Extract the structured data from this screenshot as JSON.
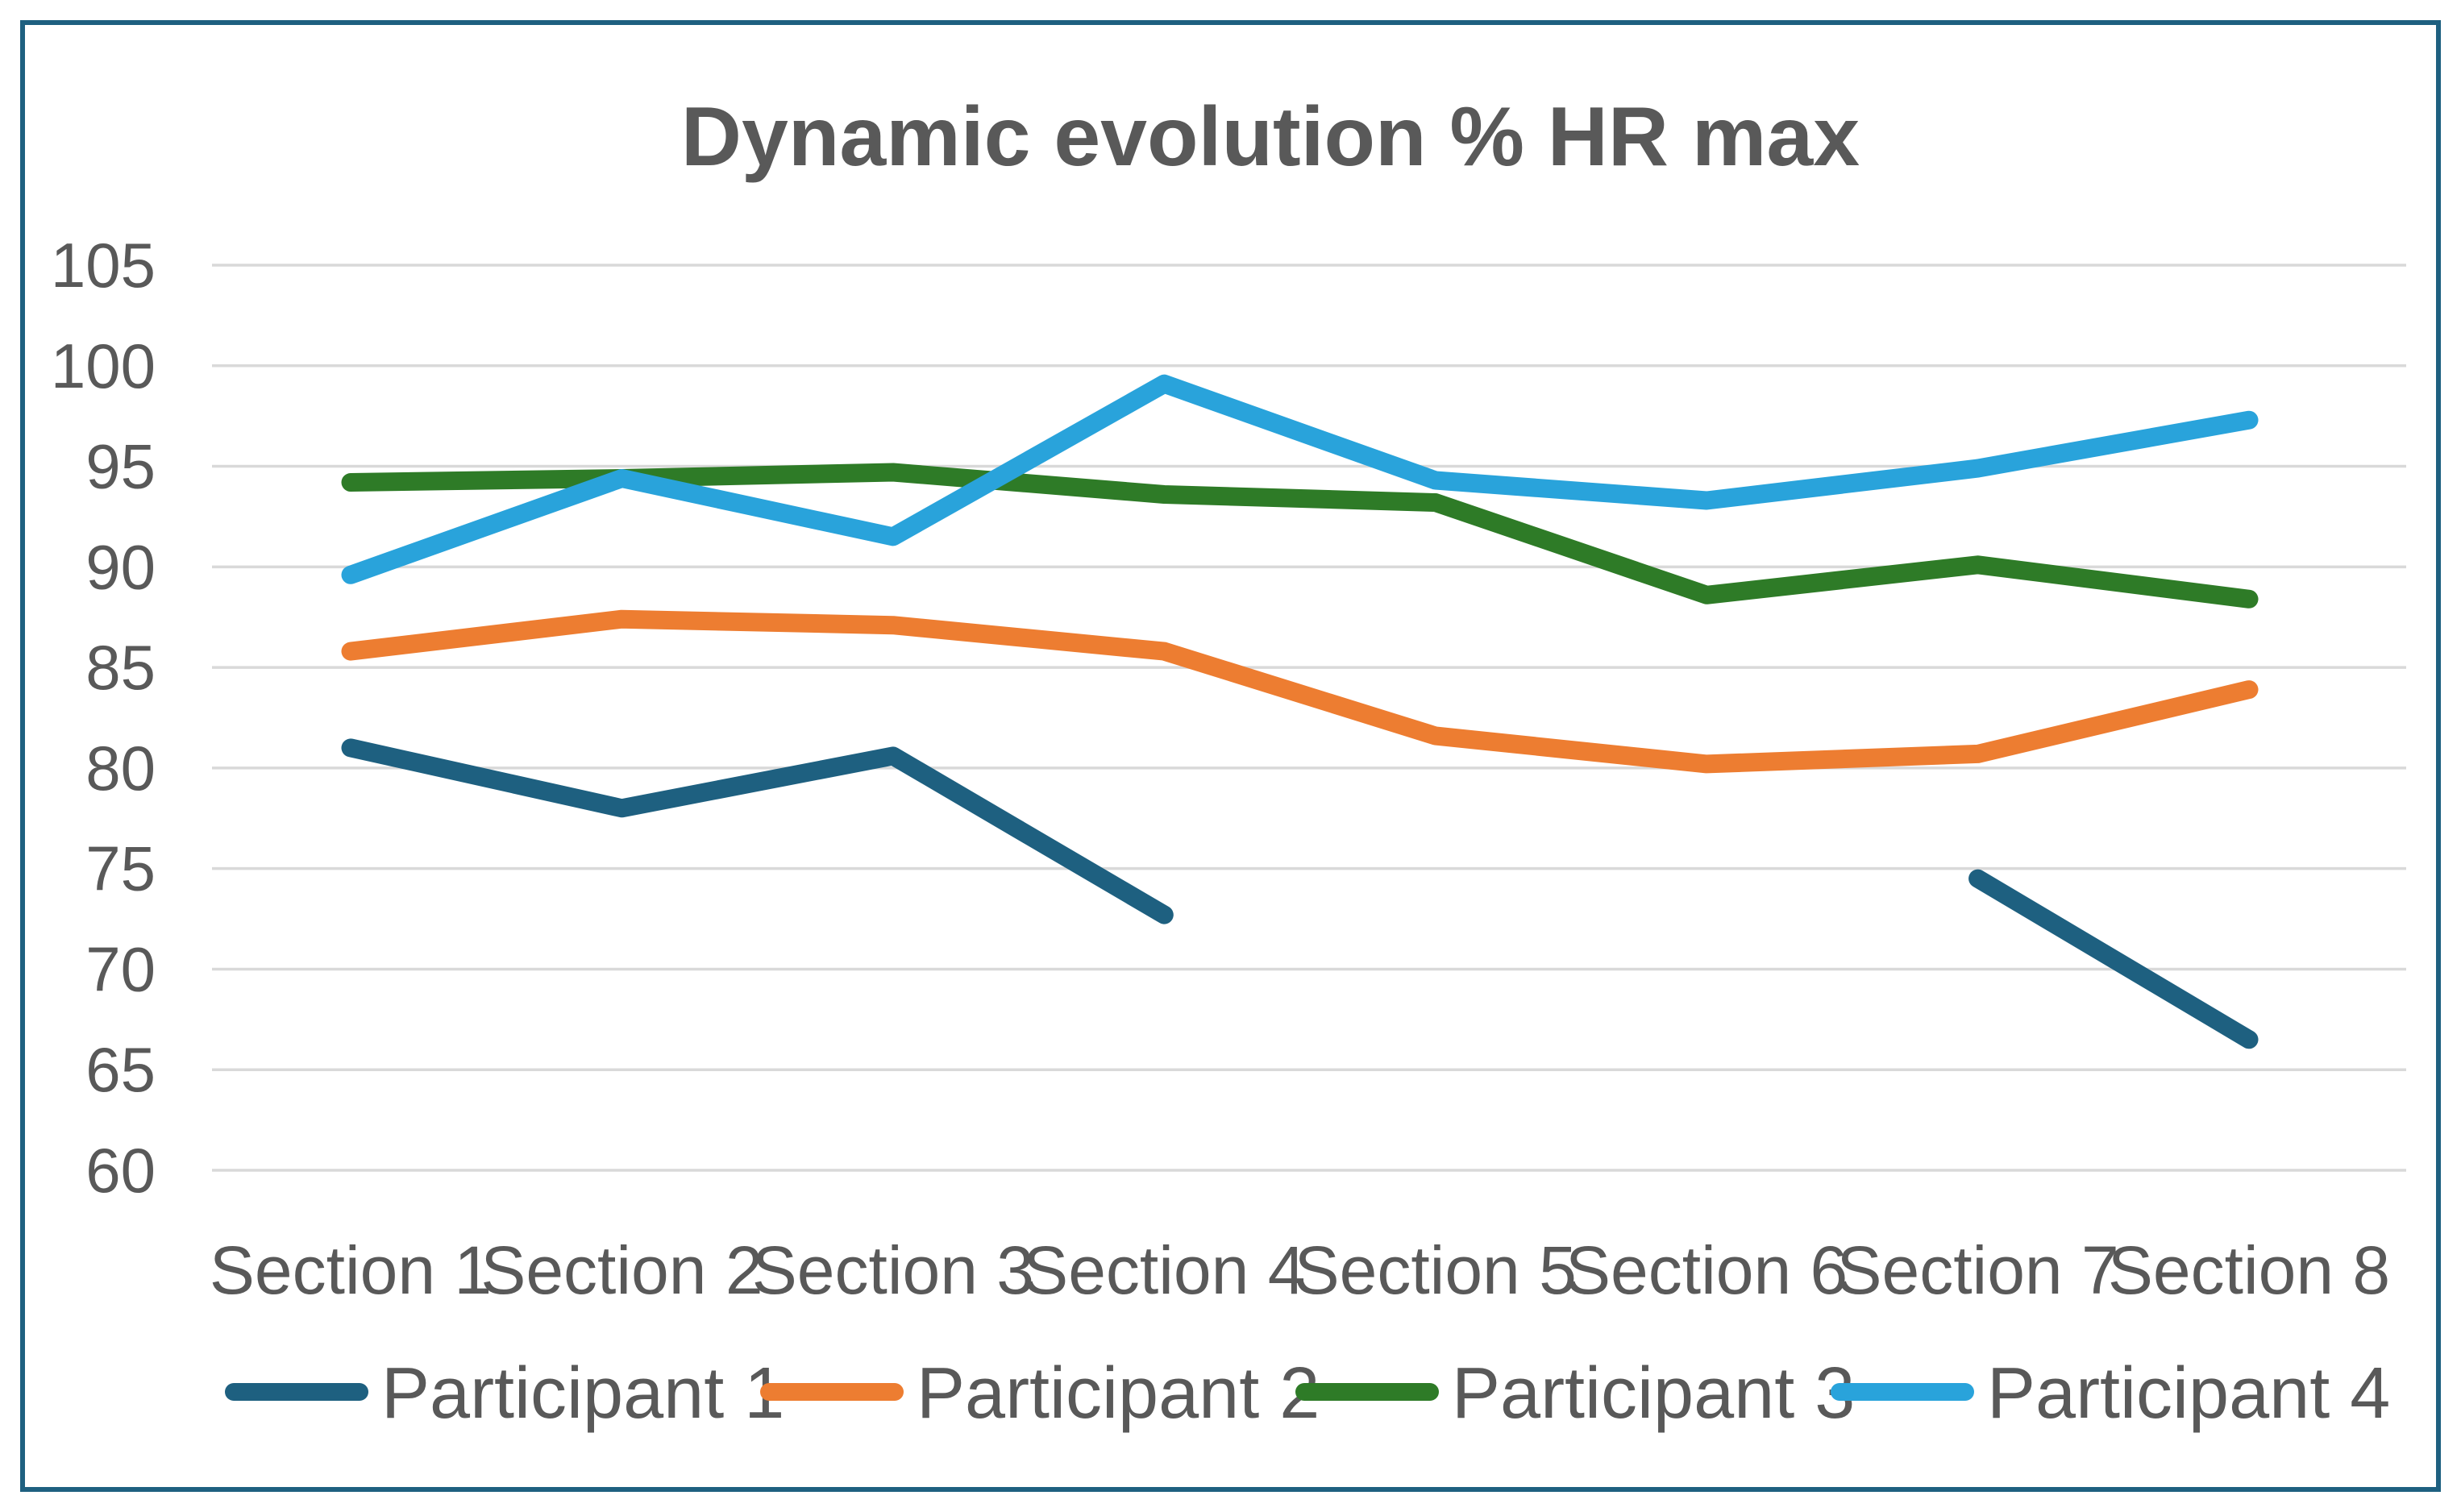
{
  "title": "Dynamic evolution % HR max",
  "colors": {
    "text": "#595959",
    "gridline": "#D9D9D9",
    "frame_border": "#1E6080",
    "background": "#FFFFFF"
  },
  "chart_data": {
    "type": "line",
    "title": "Dynamic evolution % HR max",
    "xlabel": "",
    "ylabel": "",
    "categories": [
      "Section 1",
      "Section 2",
      "Section 3",
      "Section 4",
      "Section 5",
      "Section 6",
      "Section 7",
      "Section 8"
    ],
    "series": [
      {
        "name": "Participant 1",
        "color": "#1E6080",
        "values": [
          81,
          78,
          80.6,
          72.7,
          null,
          null,
          74.5,
          66.5
        ]
      },
      {
        "name": "Participant 2",
        "color": "#ED7D31",
        "values": [
          85.8,
          87.4,
          87.1,
          85.8,
          81.6,
          80.2,
          80.7,
          83.9
        ]
      },
      {
        "name": "Participant 3",
        "color": "#2E7B27",
        "values": [
          94.2,
          94.4,
          94.7,
          93.6,
          93.2,
          88.6,
          90.1,
          88.4
        ]
      },
      {
        "name": "Participant 4",
        "color": "#29A3DB",
        "values": [
          89.6,
          94.4,
          91.5,
          99.1,
          94.3,
          93.3,
          94.9,
          97.3
        ]
      }
    ],
    "ylim": [
      60,
      105
    ],
    "yticks": [
      105,
      100,
      95,
      90,
      85,
      80,
      75,
      70,
      65,
      60
    ],
    "grid": true,
    "legend_position": "bottom",
    "legend_labels": [
      "Participant 1",
      "Participant 2",
      "Participant 3",
      "Participant 4"
    ]
  }
}
